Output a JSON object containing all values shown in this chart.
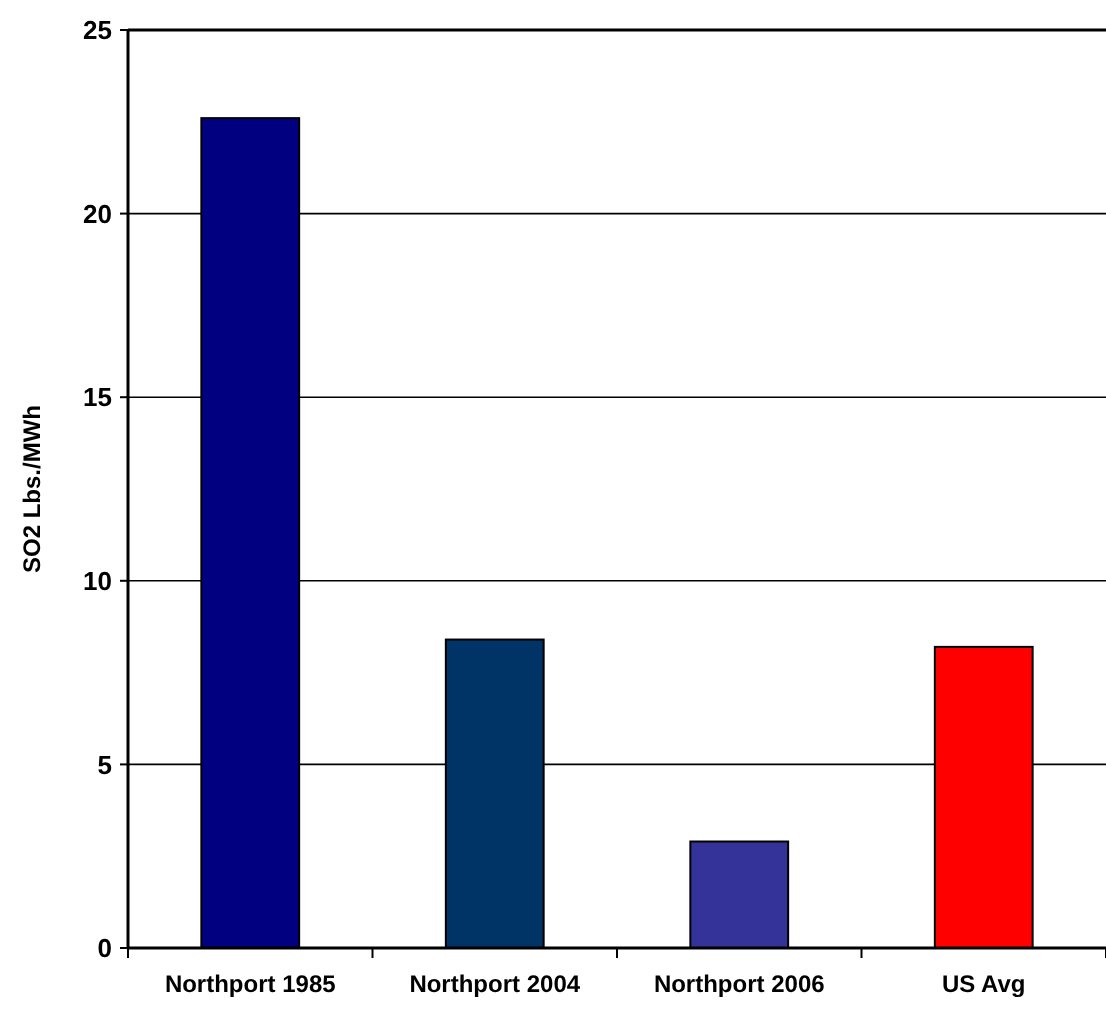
{
  "chart_data": {
    "type": "bar",
    "ylabel": "SO2 Lbs./MWh",
    "categories": [
      "Northport 1985",
      "Northport 2004",
      "Northport 2006",
      "US Avg"
    ],
    "values": [
      22.6,
      8.4,
      2.9,
      8.2
    ],
    "colors": [
      "#000080",
      "#003366",
      "#333399",
      "#ff0000"
    ],
    "ylim": [
      0,
      25
    ],
    "yticks": [
      0,
      5,
      10,
      15,
      20,
      25
    ],
    "grid": "y"
  }
}
